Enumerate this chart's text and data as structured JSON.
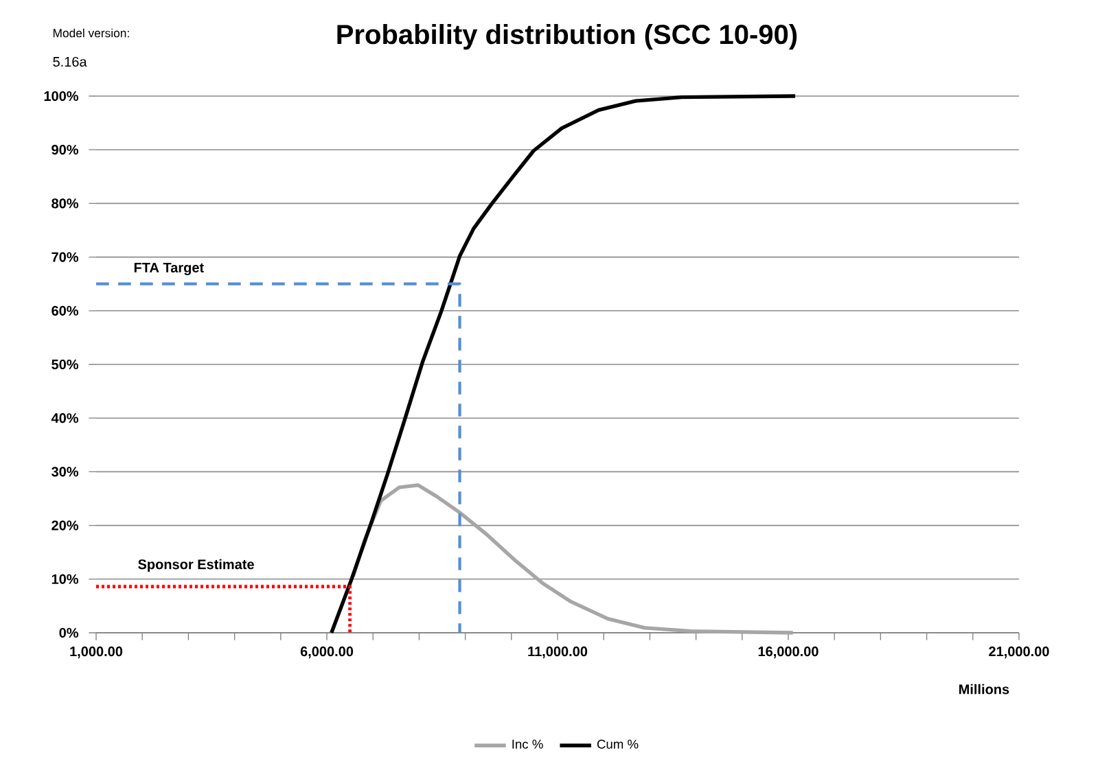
{
  "chart_data": {
    "type": "line",
    "title": "Probability distribution (SCC 10-90)",
    "xlabel": "Millions",
    "annotations": [
      "Model version:",
      "5.16a",
      "FTA Target",
      "Sponsor Estimate"
    ],
    "series": [
      {
        "name": "Inc %",
        "color": "#a6a6a6",
        "line_style": "solid",
        "x": [
          6570,
          6820,
          7170,
          7570,
          7980,
          8380,
          8880,
          9480,
          10080,
          10680,
          11290,
          12090,
          12890,
          13890,
          16100
        ],
        "values": [
          10.5,
          17.3,
          24.6,
          27.1,
          27.5,
          25.4,
          22.4,
          18.2,
          13.5,
          9.2,
          5.8,
          2.6,
          0.9,
          0.3,
          0
        ]
      },
      {
        "name": "Cum %",
        "color": "#000000",
        "line_style": "solid",
        "x": [
          6100,
          6520,
          6970,
          7320,
          7680,
          8080,
          8480,
          8880,
          9180,
          9580,
          10080,
          10480,
          11090,
          11890,
          12690,
          13690,
          16150
        ],
        "values": [
          0,
          9.6,
          20.7,
          29.7,
          39.5,
          50.6,
          59.9,
          70.2,
          75.3,
          80,
          85.5,
          89.8,
          94,
          97.4,
          99.1,
          99.8,
          100
        ]
      },
      {
        "color": "#558ed5",
        "line_style": "dashed",
        "x": [
          1000,
          8880,
          8880
        ],
        "values": [
          65,
          65,
          0
        ]
      },
      {
        "color": "#ff0000",
        "line_style": "dotted",
        "x": [
          1000,
          6500,
          6500
        ],
        "values": [
          8.6,
          8.6,
          0
        ]
      }
    ],
    "xlim": [
      1000,
      21000
    ],
    "ylim": [
      0,
      100
    ],
    "xticks": [
      {
        "value": 1000,
        "label": "1,000.00"
      },
      {
        "value": 2000,
        "label": null
      },
      {
        "value": 3000,
        "label": null
      },
      {
        "value": 4000,
        "label": null
      },
      {
        "value": 5000,
        "label": null
      },
      {
        "value": 6000,
        "label": "6,000.00"
      },
      {
        "value": 7000,
        "label": null
      },
      {
        "value": 8000,
        "label": null
      },
      {
        "value": 9000,
        "label": null
      },
      {
        "value": 10000,
        "label": null
      },
      {
        "value": 11000,
        "label": "11,000.00"
      },
      {
        "value": 12000,
        "label": null
      },
      {
        "value": 13000,
        "label": null
      },
      {
        "value": 14000,
        "label": null
      },
      {
        "value": 15000,
        "label": null
      },
      {
        "value": 16000,
        "label": "16,000.00"
      },
      {
        "value": 17000,
        "label": null
      },
      {
        "value": 18000,
        "label": null
      },
      {
        "value": 19000,
        "label": null
      },
      {
        "value": 20000,
        "label": null
      },
      {
        "value": 21000,
        "label": "21,000.00"
      }
    ],
    "yticks": [
      {
        "value": 0,
        "label": "0%"
      },
      {
        "value": 10,
        "label": "10%"
      },
      {
        "value": 20,
        "label": "20%"
      },
      {
        "value": 30,
        "label": "30%"
      },
      {
        "value": 40,
        "label": "40%"
      },
      {
        "value": 50,
        "label": "50%"
      },
      {
        "value": 60,
        "label": "60%"
      },
      {
        "value": 70,
        "label": "70%"
      },
      {
        "value": 80,
        "label": "80%"
      },
      {
        "value": 90,
        "label": "90%"
      },
      {
        "value": 100,
        "label": "100%"
      }
    ],
    "grid": "y",
    "legend": "bottom"
  }
}
